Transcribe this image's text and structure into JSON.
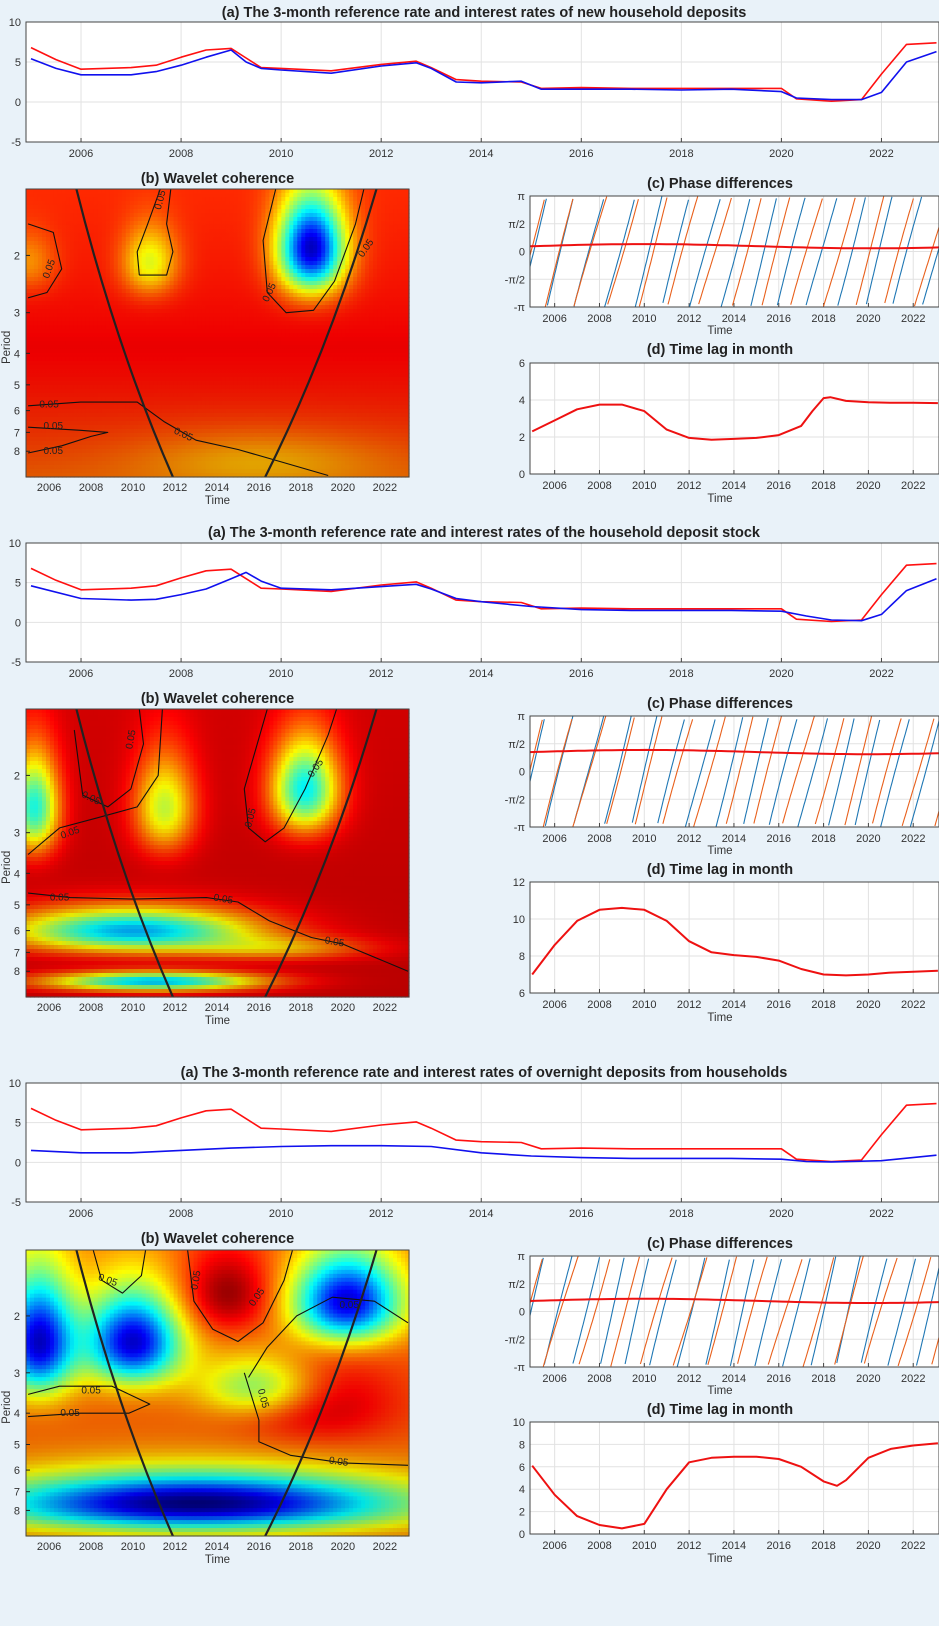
{
  "colors": {
    "ref_rate": "#ff1010",
    "deposit_rate": "#1010ee",
    "phase_a": "#1f77b4",
    "phase_b": "#e8601c",
    "phase_mean": "#ee1111",
    "lag": "#ee1111",
    "cone": "#222222"
  },
  "shared": {
    "year_ticks": [
      "2006",
      "2008",
      "2010",
      "2012",
      "2014",
      "2016",
      "2018",
      "2020",
      "2022"
    ],
    "pi_ticks": [
      "π",
      "π/2",
      "0",
      "-π/2",
      "-π"
    ],
    "time_label": "Time",
    "period_label": "Period",
    "b_title": "(b)  Wavelet coherence",
    "c_title": "(c)  Phase differences",
    "d_title": "(d) Time lag in month",
    "contour_label": "0.05"
  },
  "chart_data": [
    {
      "panel": "(a)",
      "type": "line",
      "title": "(a) The 3-month reference rate and interest rates of new household deposits",
      "ylim": [
        -5,
        10
      ],
      "yticks": [
        "10",
        "5",
        "0",
        "-5"
      ],
      "xlim": [
        2005,
        2023.1
      ],
      "series": [
        {
          "color": "ref_rate",
          "x": [
            2005,
            2005.5,
            2006,
            2007,
            2007.5,
            2008,
            2008.5,
            2009,
            2009.3,
            2009.6,
            2010,
            2011,
            2012,
            2012.7,
            2013,
            2013.5,
            2014,
            2014.8,
            2015.2,
            2016,
            2017,
            2018,
            2019,
            2020,
            2020.3,
            2021,
            2021.6,
            2022,
            2022.5,
            2023.1
          ],
          "y": [
            6.8,
            5.3,
            4.1,
            4.3,
            4.6,
            5.6,
            6.5,
            6.7,
            5.5,
            4.3,
            4.2,
            3.9,
            4.7,
            5.1,
            4.3,
            2.8,
            2.6,
            2.5,
            1.7,
            1.8,
            1.7,
            1.7,
            1.7,
            1.7,
            0.4,
            0.1,
            0.3,
            3.5,
            7.2,
            7.4
          ]
        },
        {
          "color": "deposit_rate",
          "x": [
            2005,
            2005.5,
            2006,
            2007,
            2007.5,
            2008,
            2008.5,
            2009,
            2009.3,
            2009.6,
            2010,
            2011,
            2012,
            2012.7,
            2013,
            2013.5,
            2014,
            2014.8,
            2015.2,
            2016,
            2017,
            2018,
            2019,
            2020,
            2020.3,
            2021,
            2021.6,
            2022,
            2022.5,
            2023.1
          ],
          "y": [
            5.4,
            4.2,
            3.4,
            3.4,
            3.8,
            4.6,
            5.6,
            6.5,
            5.0,
            4.2,
            4.0,
            3.6,
            4.5,
            4.9,
            4.2,
            2.5,
            2.4,
            2.6,
            1.6,
            1.6,
            1.6,
            1.5,
            1.6,
            1.3,
            0.5,
            0.3,
            0.3,
            1.2,
            5.0,
            6.3
          ]
        }
      ]
    },
    {
      "panel": "(b)",
      "type": "heatmap",
      "title": "(b)  Wavelet coherence",
      "xlabel": "Time",
      "ylabel": "Period",
      "yticks": [
        "2",
        "3",
        "4",
        "5",
        "6",
        "7",
        "8"
      ],
      "contour": "0.05",
      "colormap": "jet",
      "regions": [
        {
          "note": "low-coherence area",
          "year": 2018.5,
          "period": 2.0,
          "coherence": 0.15
        },
        {
          "note": "moderate area",
          "year": 2011,
          "period": 2.0,
          "coherence": 0.6
        }
      ]
    },
    {
      "panel": "(c)",
      "type": "line",
      "title": "(c)  Phase differences",
      "xlabel": "Time",
      "ylim": [
        -3.1416,
        3.1416
      ],
      "mean_phase": 0.3
    },
    {
      "panel": "(d)",
      "type": "line",
      "title": "(d) Time lag in month",
      "xlabel": "Time",
      "ylim": [
        0,
        6
      ],
      "yticks": [
        "6",
        "4",
        "2",
        "0"
      ],
      "series": [
        {
          "color": "lag",
          "x": [
            2005,
            2006,
            2007,
            2008,
            2009,
            2010,
            2011,
            2012,
            2013,
            2014,
            2015,
            2016,
            2017,
            2017.5,
            2018,
            2018.3,
            2019,
            2020,
            2021,
            2022,
            2023.1
          ],
          "y": [
            2.3,
            2.9,
            3.5,
            3.75,
            3.75,
            3.4,
            2.4,
            1.95,
            1.85,
            1.9,
            1.95,
            2.1,
            2.6,
            3.4,
            4.1,
            4.15,
            3.95,
            3.88,
            3.85,
            3.85,
            3.83
          ]
        }
      ]
    },
    {
      "panel": "(a)",
      "type": "line",
      "title": "(a) The 3-month reference rate and interest rates of the household deposit stock",
      "ylim": [
        -5,
        10
      ],
      "yticks": [
        "10",
        "5",
        "0",
        "-5"
      ],
      "xlim": [
        2005,
        2023.1
      ],
      "series": [
        {
          "color": "ref_rate",
          "x": [
            2005,
            2005.5,
            2006,
            2007,
            2007.5,
            2008,
            2008.5,
            2009,
            2009.3,
            2009.6,
            2010,
            2011,
            2012,
            2012.7,
            2013,
            2013.5,
            2014,
            2014.8,
            2015.2,
            2016,
            2017,
            2018,
            2019,
            2020,
            2020.3,
            2021,
            2021.6,
            2022,
            2022.5,
            2023.1
          ],
          "y": [
            6.8,
            5.3,
            4.1,
            4.3,
            4.6,
            5.6,
            6.5,
            6.7,
            5.5,
            4.3,
            4.2,
            3.9,
            4.7,
            5.1,
            4.3,
            2.8,
            2.6,
            2.5,
            1.7,
            1.8,
            1.7,
            1.7,
            1.7,
            1.7,
            0.4,
            0.1,
            0.3,
            3.5,
            7.2,
            7.4
          ]
        },
        {
          "color": "deposit_rate",
          "x": [
            2005,
            2006,
            2007,
            2007.5,
            2008,
            2008.5,
            2009,
            2009.3,
            2009.6,
            2010,
            2011,
            2012,
            2012.7,
            2013,
            2013.5,
            2014,
            2015,
            2016,
            2017,
            2018,
            2019,
            2020,
            2020.5,
            2021,
            2021.6,
            2022,
            2022.5,
            2023.1
          ],
          "y": [
            4.6,
            3.0,
            2.8,
            2.9,
            3.5,
            4.2,
            5.5,
            6.3,
            5.2,
            4.3,
            4.1,
            4.5,
            4.8,
            4.2,
            3.0,
            2.6,
            2.0,
            1.6,
            1.5,
            1.5,
            1.5,
            1.4,
            0.8,
            0.3,
            0.2,
            1.0,
            4.0,
            5.5
          ]
        }
      ]
    },
    {
      "panel": "(b)",
      "type": "heatmap",
      "title": "(b)  Wavelet coherence",
      "xlabel": "Time",
      "ylabel": "Period",
      "yticks": [
        "2",
        "3",
        "4",
        "5",
        "6",
        "7",
        "8"
      ],
      "contour": "0.05",
      "colormap": "jet",
      "regions": [
        {
          "note": "low-coherence band",
          "year": 2010,
          "period": 6.0,
          "coherence": 0.25
        },
        {
          "note": "low-coherence spot",
          "year": 2018.5,
          "period": 2.2,
          "coherence": 0.3
        }
      ]
    },
    {
      "panel": "(c)",
      "type": "line",
      "title": "(c)  Phase differences",
      "xlabel": "Time",
      "ylim": [
        -3.1416,
        3.1416
      ],
      "mean_phase": 1.1
    },
    {
      "panel": "(d)",
      "type": "line",
      "title": "(d) Time lag in month",
      "xlabel": "Time",
      "ylim": [
        6,
        12
      ],
      "yticks": [
        "12",
        "10",
        "8",
        "6"
      ],
      "series": [
        {
          "color": "lag",
          "x": [
            2005,
            2006,
            2007,
            2008,
            2009,
            2010,
            2011,
            2012,
            2013,
            2014,
            2015,
            2016,
            2017,
            2018,
            2019,
            2020,
            2021,
            2022,
            2023.1
          ],
          "y": [
            7.0,
            8.6,
            9.9,
            10.5,
            10.6,
            10.5,
            9.9,
            8.8,
            8.2,
            8.05,
            7.95,
            7.75,
            7.3,
            7.0,
            6.95,
            7.0,
            7.1,
            7.15,
            7.2
          ]
        }
      ]
    },
    {
      "panel": "(a)",
      "type": "line",
      "title": "(a) The 3-month reference rate and interest rates of overnight deposits from households",
      "ylim": [
        -5,
        10
      ],
      "yticks": [
        "10",
        "5",
        "0",
        "-5"
      ],
      "xlim": [
        2005,
        2023.1
      ],
      "series": [
        {
          "color": "ref_rate",
          "x": [
            2005,
            2005.5,
            2006,
            2007,
            2007.5,
            2008,
            2008.5,
            2009,
            2009.3,
            2009.6,
            2010,
            2011,
            2012,
            2012.7,
            2013,
            2013.5,
            2014,
            2014.8,
            2015.2,
            2016,
            2017,
            2018,
            2019,
            2020,
            2020.3,
            2021,
            2021.6,
            2022,
            2022.5,
            2023.1
          ],
          "y": [
            6.8,
            5.3,
            4.1,
            4.3,
            4.6,
            5.6,
            6.5,
            6.7,
            5.5,
            4.3,
            4.2,
            3.9,
            4.7,
            5.1,
            4.3,
            2.8,
            2.6,
            2.5,
            1.7,
            1.8,
            1.7,
            1.7,
            1.7,
            1.7,
            0.4,
            0.1,
            0.3,
            3.5,
            7.2,
            7.4
          ]
        },
        {
          "color": "deposit_rate",
          "x": [
            2005,
            2006,
            2007,
            2008,
            2009,
            2010,
            2011,
            2012,
            2013,
            2014,
            2015,
            2016,
            2017,
            2018,
            2019,
            2020,
            2020.5,
            2021,
            2022,
            2023.1
          ],
          "y": [
            1.5,
            1.2,
            1.2,
            1.5,
            1.8,
            2.0,
            2.1,
            2.1,
            2.0,
            1.2,
            0.8,
            0.6,
            0.5,
            0.5,
            0.5,
            0.4,
            0.1,
            0.05,
            0.2,
            0.9
          ]
        }
      ]
    },
    {
      "panel": "(b)",
      "type": "heatmap",
      "title": "(b)  Wavelet coherence",
      "xlabel": "Time",
      "ylabel": "Period",
      "yticks": [
        "2",
        "3",
        "4",
        "5",
        "6",
        "7",
        "8"
      ],
      "contour": "0.05",
      "colormap": "jet",
      "regions": [
        {
          "note": "low-coherence band",
          "year": 2012,
          "period": 7.5,
          "coherence": 0.05
        },
        {
          "note": "high-coherence area",
          "year": 2018,
          "period": 3.5,
          "coherence": 0.9
        }
      ]
    },
    {
      "panel": "(c)",
      "type": "line",
      "title": "(c)  Phase differences",
      "xlabel": "Time",
      "ylim": [
        -3.1416,
        3.1416
      ],
      "mean_phase": 0.6
    },
    {
      "panel": "(d)",
      "type": "line",
      "title": "(d) Time lag in month",
      "xlabel": "Time",
      "ylim": [
        0,
        10
      ],
      "yticks": [
        "10",
        "8",
        "6",
        "4",
        "2",
        "0"
      ],
      "series": [
        {
          "color": "lag",
          "x": [
            2005,
            2006,
            2007,
            2008,
            2009,
            2010,
            2011,
            2012,
            2013,
            2014,
            2015,
            2016,
            2017,
            2018,
            2018.6,
            2019,
            2020,
            2021,
            2022,
            2023.1
          ],
          "y": [
            6.1,
            3.5,
            1.6,
            0.8,
            0.5,
            0.9,
            4.0,
            6.4,
            6.8,
            6.9,
            6.9,
            6.7,
            6.0,
            4.7,
            4.3,
            4.8,
            6.8,
            7.6,
            7.9,
            8.1
          ]
        }
      ]
    }
  ]
}
